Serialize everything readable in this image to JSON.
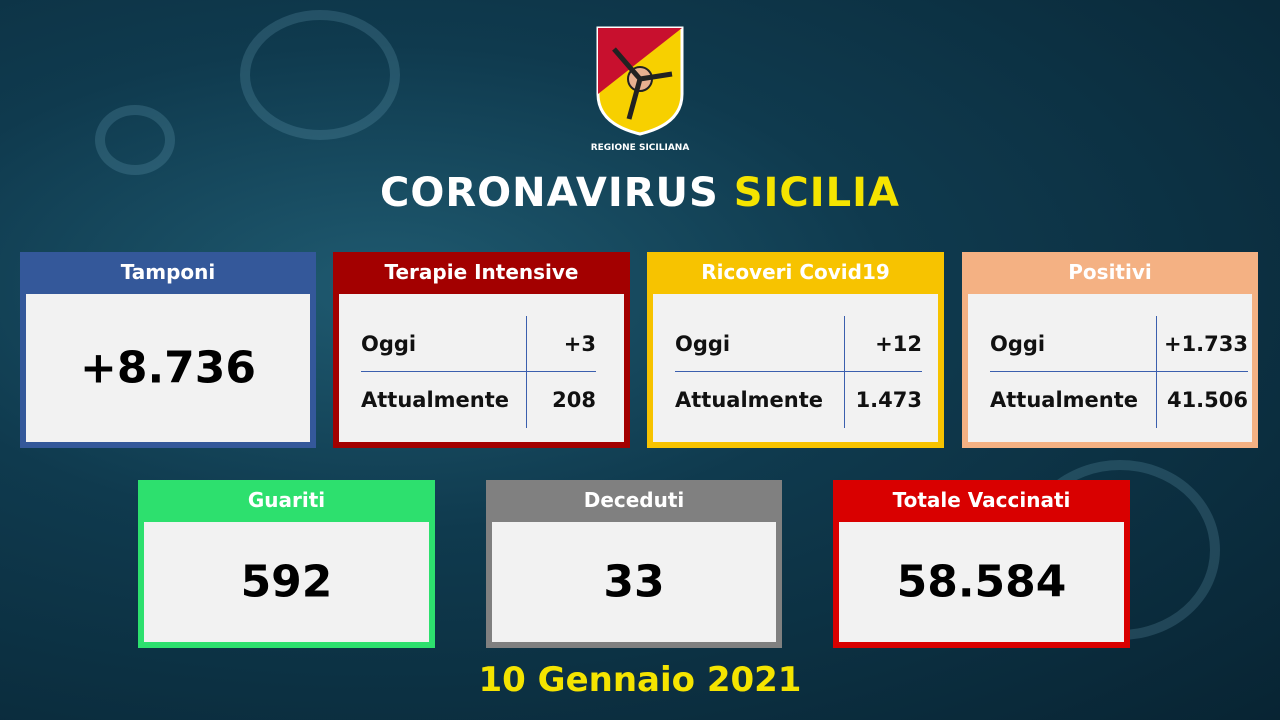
{
  "header": {
    "region": "REGIONE SICILIANA",
    "title_white": "CORONAVIRUS",
    "title_yellow": "SICILIA"
  },
  "colors": {
    "tamponi": "#34589a",
    "terapie": "#a30000",
    "ricoveri": "#f7c300",
    "positivi": "#f4b183",
    "guariti": "#2de06e",
    "deceduti": "#808080",
    "vaccinati": "#d90000",
    "title_yellow": "#f5e400"
  },
  "tamponi": {
    "label": "Tamponi",
    "value": "+8.736"
  },
  "terapie": {
    "label": "Terapie Intensive",
    "oggi_label": "Oggi",
    "oggi": "+3",
    "attuali_label": "Attualmente",
    "attuali": "208"
  },
  "ricoveri": {
    "label": "Ricoveri Covid19",
    "oggi_label": "Oggi",
    "oggi": "+12",
    "attuali_label": "Attualmente",
    "attuali": "1.473"
  },
  "positivi": {
    "label": "Positivi",
    "oggi_label": "Oggi",
    "oggi": "+1.733",
    "attuali_label": "Attualmente",
    "attuali": "41.506"
  },
  "guariti": {
    "label": "Guariti",
    "value": "592"
  },
  "deceduti": {
    "label": "Deceduti",
    "value": "33"
  },
  "vaccinati": {
    "label": "Totale Vaccinati",
    "value": "58.584"
  },
  "date": "10 Gennaio 2021"
}
